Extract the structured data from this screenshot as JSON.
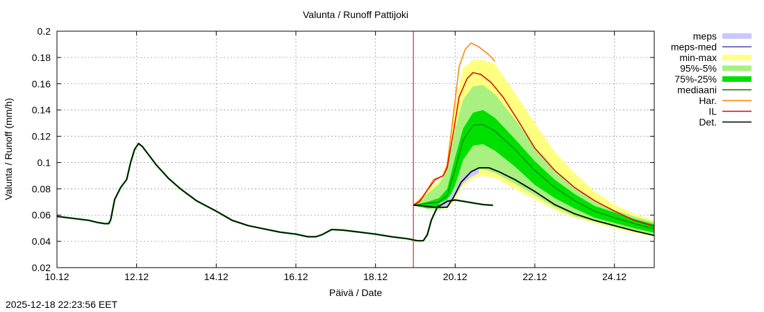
{
  "chart_data": {
    "type": "area",
    "title": "Valunta / Runoff  Pattijoki",
    "xlabel": "Päivä / Date",
    "ylabel": "Valunta / Runoff (mm/h)",
    "x_unit": "days since 10.12 00:00",
    "xlim": [
      0,
      15
    ],
    "ylim": [
      0.02,
      0.2
    ],
    "grid": true,
    "legend_position": "right, outside plot",
    "x_ticks": [
      {
        "x": 0,
        "label": "10.12"
      },
      {
        "x": 2,
        "label": "12.12"
      },
      {
        "x": 4,
        "label": "14.12"
      },
      {
        "x": 6,
        "label": "16.12"
      },
      {
        "x": 8,
        "label": "18.12"
      },
      {
        "x": 10,
        "label": "20.12"
      },
      {
        "x": 12,
        "label": "22.12"
      },
      {
        "x": 14,
        "label": "24.12"
      }
    ],
    "y_ticks": [
      {
        "y": 0.02,
        "label": "0.02"
      },
      {
        "y": 0.04,
        "label": "0.04"
      },
      {
        "y": 0.06,
        "label": "0.06"
      },
      {
        "y": 0.08,
        "label": "0.08"
      },
      {
        "y": 0.1,
        "label": "0.1"
      },
      {
        "y": 0.12,
        "label": "0.12"
      },
      {
        "y": 0.14,
        "label": "0.14"
      },
      {
        "y": 0.16,
        "label": "0.16"
      },
      {
        "y": 0.18,
        "label": "0.18"
      },
      {
        "y": 0.2,
        "label": "0.2"
      }
    ],
    "forecast_start": 8.95,
    "colors": {
      "meps": "#c8c8ff",
      "meps_med": "#4040c0",
      "min_max": "#ffff80",
      "p95_5": "#a8f080",
      "p75_25": "#00e000",
      "mediaani": "#007000",
      "har": "#ff8000",
      "il": "#e00000",
      "det": "#000000",
      "nowline": "#cc0000"
    },
    "legend": [
      {
        "key": "meps",
        "label": "meps",
        "style": "fill"
      },
      {
        "key": "meps_med",
        "label": "meps-med",
        "style": "line"
      },
      {
        "key": "min_max",
        "label": "min-max",
        "style": "fill"
      },
      {
        "key": "p95_5",
        "label": "95%-5%",
        "style": "fill"
      },
      {
        "key": "p75_25",
        "label": "75%-25%",
        "style": "fill"
      },
      {
        "key": "mediaani",
        "label": "mediaani",
        "style": "line"
      },
      {
        "key": "har",
        "label": "Har.",
        "style": "line"
      },
      {
        "key": "il",
        "label": "IL",
        "style": "line"
      },
      {
        "key": "det",
        "label": "Det.",
        "style": "line"
      }
    ],
    "series": {
      "observed": [
        [
          0,
          0.059
        ],
        [
          0.4,
          0.0575
        ],
        [
          0.8,
          0.056
        ],
        [
          1.0,
          0.0545
        ],
        [
          1.2,
          0.0535
        ],
        [
          1.3,
          0.0535
        ],
        [
          1.35,
          0.0565
        ],
        [
          1.45,
          0.072
        ],
        [
          1.6,
          0.081
        ],
        [
          1.75,
          0.087
        ],
        [
          1.85,
          0.1
        ],
        [
          1.95,
          0.11
        ],
        [
          2.05,
          0.1145
        ],
        [
          2.15,
          0.112
        ],
        [
          2.3,
          0.106
        ],
        [
          2.5,
          0.098
        ],
        [
          2.8,
          0.088
        ],
        [
          3.1,
          0.08
        ],
        [
          3.5,
          0.071
        ],
        [
          4.0,
          0.063
        ],
        [
          4.4,
          0.056
        ],
        [
          4.8,
          0.052
        ],
        [
          5.2,
          0.0495
        ],
        [
          5.6,
          0.047
        ],
        [
          6.0,
          0.0455
        ],
        [
          6.3,
          0.0435
        ],
        [
          6.5,
          0.0435
        ],
        [
          6.65,
          0.045
        ],
        [
          6.9,
          0.049
        ],
        [
          7.2,
          0.0485
        ],
        [
          7.6,
          0.047
        ],
        [
          8.0,
          0.0455
        ],
        [
          8.4,
          0.0435
        ],
        [
          8.8,
          0.042
        ],
        [
          9.05,
          0.0405
        ],
        [
          9.2,
          0.0405
        ],
        [
          9.3,
          0.045
        ],
        [
          9.4,
          0.056
        ],
        [
          9.55,
          0.066
        ],
        [
          9.8,
          0.0705
        ],
        [
          10.0,
          0.0715
        ],
        [
          10.2,
          0.0705
        ],
        [
          10.5,
          0.069
        ],
        [
          10.7,
          0.068
        ],
        [
          10.95,
          0.0675
        ]
      ],
      "det": [
        [
          8.95,
          0.0675
        ],
        [
          9.2,
          0.067
        ],
        [
          9.45,
          0.066
        ],
        [
          9.65,
          0.066
        ],
        [
          9.8,
          0.066
        ],
        [
          9.95,
          0.073
        ],
        [
          10.15,
          0.085
        ],
        [
          10.4,
          0.093
        ],
        [
          10.6,
          0.096
        ],
        [
          10.85,
          0.096
        ],
        [
          11.1,
          0.093
        ],
        [
          11.5,
          0.087
        ],
        [
          12.0,
          0.078
        ],
        [
          12.5,
          0.068
        ],
        [
          13.0,
          0.061
        ],
        [
          13.5,
          0.056
        ],
        [
          14.0,
          0.052
        ],
        [
          14.5,
          0.048
        ],
        [
          15.0,
          0.0445
        ]
      ],
      "il": [
        [
          8.95,
          0.0675
        ],
        [
          9.1,
          0.07
        ],
        [
          9.3,
          0.079
        ],
        [
          9.5,
          0.087
        ],
        [
          9.7,
          0.09
        ],
        [
          9.8,
          0.096
        ],
        [
          9.95,
          0.122
        ],
        [
          10.1,
          0.15
        ],
        [
          10.3,
          0.164
        ],
        [
          10.45,
          0.1685
        ],
        [
          10.65,
          0.167
        ],
        [
          10.9,
          0.161
        ],
        [
          11.2,
          0.15
        ],
        [
          11.6,
          0.131
        ],
        [
          12.0,
          0.111
        ],
        [
          12.5,
          0.094
        ],
        [
          13.0,
          0.081
        ],
        [
          13.5,
          0.071
        ],
        [
          14.0,
          0.063
        ],
        [
          14.5,
          0.056
        ],
        [
          15.0,
          0.0515
        ]
      ],
      "har": [
        [
          8.95,
          0.0675
        ],
        [
          9.2,
          0.074
        ],
        [
          9.45,
          0.087
        ],
        [
          9.7,
          0.09
        ],
        [
          9.8,
          0.098
        ],
        [
          9.95,
          0.135
        ],
        [
          10.1,
          0.173
        ],
        [
          10.25,
          0.186
        ],
        [
          10.4,
          0.191
        ],
        [
          10.6,
          0.188
        ],
        [
          10.85,
          0.182
        ],
        [
          11.0,
          0.177
        ]
      ],
      "mediaani": [
        [
          8.95,
          0.0675
        ],
        [
          9.3,
          0.069
        ],
        [
          9.6,
          0.07
        ],
        [
          9.8,
          0.075
        ],
        [
          10.0,
          0.095
        ],
        [
          10.2,
          0.117
        ],
        [
          10.45,
          0.1285
        ],
        [
          10.7,
          0.129
        ],
        [
          11.0,
          0.124
        ],
        [
          11.5,
          0.11
        ],
        [
          12.0,
          0.094
        ],
        [
          12.5,
          0.081
        ],
        [
          13.0,
          0.071
        ],
        [
          13.5,
          0.063
        ],
        [
          14.0,
          0.058
        ],
        [
          14.5,
          0.0535
        ],
        [
          15.0,
          0.0495
        ]
      ],
      "p75_25": [
        [
          8.95,
          0.0675,
          0.0675
        ],
        [
          9.3,
          0.065,
          0.07
        ],
        [
          9.6,
          0.066,
          0.073
        ],
        [
          9.8,
          0.069,
          0.08
        ],
        [
          10.0,
          0.083,
          0.104
        ],
        [
          10.2,
          0.102,
          0.126
        ],
        [
          10.45,
          0.113,
          0.138
        ],
        [
          10.7,
          0.114,
          0.14
        ],
        [
          11.0,
          0.109,
          0.134
        ],
        [
          11.5,
          0.097,
          0.118
        ],
        [
          12.0,
          0.083,
          0.101
        ],
        [
          12.5,
          0.073,
          0.087
        ],
        [
          13.0,
          0.065,
          0.076
        ],
        [
          13.5,
          0.058,
          0.067
        ],
        [
          14.0,
          0.054,
          0.062
        ],
        [
          14.5,
          0.05,
          0.057
        ],
        [
          15.0,
          0.0465,
          0.053
        ]
      ],
      "p95_5": [
        [
          8.95,
          0.0675,
          0.0675
        ],
        [
          9.3,
          0.065,
          0.076
        ],
        [
          9.6,
          0.064,
          0.084
        ],
        [
          9.8,
          0.066,
          0.095
        ],
        [
          10.0,
          0.075,
          0.125
        ],
        [
          10.2,
          0.087,
          0.148
        ],
        [
          10.45,
          0.094,
          0.158
        ],
        [
          10.7,
          0.095,
          0.159
        ],
        [
          11.0,
          0.092,
          0.152
        ],
        [
          11.5,
          0.084,
          0.133
        ],
        [
          12.0,
          0.075,
          0.112
        ],
        [
          12.5,
          0.066,
          0.094
        ],
        [
          13.0,
          0.059,
          0.081
        ],
        [
          13.5,
          0.055,
          0.071
        ],
        [
          14.0,
          0.051,
          0.064
        ],
        [
          14.5,
          0.0475,
          0.059
        ],
        [
          15.0,
          0.0445,
          0.0545
        ]
      ],
      "min_max": [
        [
          8.95,
          0.0675,
          0.0675
        ],
        [
          9.3,
          0.066,
          0.08
        ],
        [
          9.6,
          0.0645,
          0.086
        ],
        [
          9.8,
          0.065,
          0.1
        ],
        [
          10.0,
          0.071,
          0.145
        ],
        [
          10.2,
          0.082,
          0.172
        ],
        [
          10.45,
          0.088,
          0.178
        ],
        [
          10.7,
          0.09,
          0.178
        ],
        [
          11.0,
          0.088,
          0.175
        ],
        [
          11.5,
          0.08,
          0.153
        ],
        [
          12.0,
          0.072,
          0.13
        ],
        [
          12.5,
          0.064,
          0.108
        ],
        [
          13.0,
          0.058,
          0.092
        ],
        [
          13.5,
          0.054,
          0.078
        ],
        [
          14.0,
          0.05,
          0.068
        ],
        [
          14.5,
          0.0465,
          0.061
        ],
        [
          15.0,
          0.0435,
          0.056
        ]
      ],
      "meps": [
        [
          9.6,
          0.066,
          0.069
        ],
        [
          9.8,
          0.067,
          0.072
        ],
        [
          10.0,
          0.074,
          0.08
        ],
        [
          10.2,
          0.084,
          0.09
        ],
        [
          10.4,
          0.089,
          0.094
        ],
        [
          10.6,
          0.092,
          0.096
        ]
      ]
    }
  },
  "footer": {
    "timestamp": "2025-12-18 22:23:56 EET"
  }
}
